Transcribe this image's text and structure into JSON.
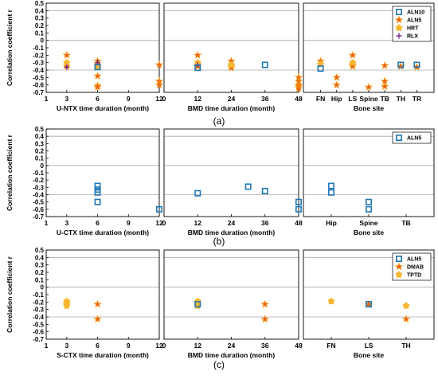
{
  "colors": {
    "ALN10": "#1f77b4",
    "ALN5": "#1f77b4",
    "HRT": "#f7b731",
    "RLX": "#7b2c8c",
    "DMAB": "#e8641e",
    "TPTD": "#f7b731",
    "star_fill": "#e8641e",
    "star_edge": "#ff9900",
    "refline": "#aaaaaa",
    "box": "#000000"
  },
  "chart_data": [
    {
      "type": "scatter",
      "panel": "a",
      "caption": "(a)",
      "ylabel": "Correlation coefficient r",
      "yticks": [
        "0.5",
        "0.4",
        "0.3",
        "0.2",
        "0.1",
        "0",
        "-0.1",
        "-0.2",
        "-0.3",
        "-0.4",
        "-0.5",
        "-0.6",
        "-0.7"
      ],
      "ylim": [
        -0.7,
        0.5
      ],
      "reflines": [
        0.4,
        0,
        -0.4
      ],
      "legend": {
        "position": "top-right",
        "entries": [
          {
            "name": "ALN10",
            "marker": "square",
            "color": "ALN10"
          },
          {
            "name": "ALN5",
            "marker": "star",
            "color": "ALN5"
          },
          {
            "name": "HRT",
            "marker": "circle",
            "color": "HRT"
          },
          {
            "name": "RLX",
            "marker": "plus",
            "color": "RLX"
          }
        ]
      },
      "subplots": [
        {
          "xlabel": "U-NTX time duration (month)",
          "xtype": "numeric",
          "xlim": [
            1,
            12
          ],
          "xticks": [
            "1",
            "3",
            "6",
            "9",
            "12"
          ],
          "series": [
            {
              "name": "ALN10",
              "marker": "square",
              "points": [
                [
                  6,
                  -0.36
                ]
              ]
            },
            {
              "name": "ALN5",
              "marker": "star",
              "points": [
                [
                  3,
                  -0.2
                ],
                [
                  3,
                  -0.35
                ],
                [
                  6,
                  -0.28
                ],
                [
                  6,
                  -0.33
                ],
                [
                  6,
                  -0.48
                ],
                [
                  6,
                  -0.61
                ],
                [
                  6,
                  -0.63
                ],
                [
                  12,
                  -0.33
                ],
                [
                  12,
                  -0.55
                ],
                [
                  12,
                  -0.6
                ]
              ]
            },
            {
              "name": "HRT",
              "marker": "circle",
              "points": [
                [
                  3,
                  -0.3
                ],
                [
                  6,
                  -0.35
                ]
              ]
            },
            {
              "name": "RLX",
              "marker": "plus",
              "points": [
                [
                  3,
                  -0.36
                ],
                [
                  6,
                  -0.3
                ]
              ]
            }
          ]
        },
        {
          "xlabel": "BMD time duration (month)",
          "xtype": "numeric",
          "xlim": [
            0,
            48
          ],
          "xticks": [
            "0",
            "12",
            "24",
            "36",
            "48"
          ],
          "series": [
            {
              "name": "ALN10",
              "marker": "square",
              "points": [
                [
                  12,
                  -0.37
                ],
                [
                  36,
                  -0.33
                ]
              ]
            },
            {
              "name": "ALN5",
              "marker": "star",
              "points": [
                [
                  12,
                  -0.2
                ],
                [
                  12,
                  -0.33
                ],
                [
                  12,
                  -0.35
                ],
                [
                  24,
                  -0.28
                ],
                [
                  24,
                  -0.35
                ],
                [
                  24,
                  -0.37
                ],
                [
                  48,
                  -0.5
                ],
                [
                  48,
                  -0.55
                ],
                [
                  48,
                  -0.6
                ],
                [
                  48,
                  -0.62
                ],
                [
                  48,
                  -0.65
                ]
              ]
            },
            {
              "name": "HRT",
              "marker": "circle",
              "points": [
                [
                  12,
                  -0.3
                ],
                [
                  24,
                  -0.33
                ]
              ]
            },
            {
              "name": "RLX",
              "marker": "plus",
              "points": [
                [
                  12,
                  -0.33
                ]
              ]
            }
          ]
        },
        {
          "xlabel": "Bone site",
          "xtype": "category",
          "categories": [
            "FN",
            "Hip",
            "LS",
            "Spine",
            "TB",
            "TH",
            "TR"
          ],
          "series": [
            {
              "name": "ALN10",
              "marker": "square",
              "points": [
                [
                  "FN",
                  -0.38
                ],
                [
                  "TH",
                  -0.33
                ],
                [
                  "TR",
                  -0.33
                ]
              ]
            },
            {
              "name": "ALN5",
              "marker": "star",
              "points": [
                [
                  "FN",
                  -0.28
                ],
                [
                  "Hip",
                  -0.5
                ],
                [
                  "Hip",
                  -0.6
                ],
                [
                  "LS",
                  -0.2
                ],
                [
                  "LS",
                  -0.33
                ],
                [
                  "LS",
                  -0.35
                ],
                [
                  "Spine",
                  -0.63
                ],
                [
                  "TB",
                  -0.34
                ],
                [
                  "TB",
                  -0.55
                ],
                [
                  "TB",
                  -0.62
                ],
                [
                  "TH",
                  -0.35
                ],
                [
                  "TR",
                  -0.36
                ]
              ]
            },
            {
              "name": "HRT",
              "marker": "circle",
              "points": [
                [
                  "FN",
                  -0.32
                ],
                [
                  "LS",
                  -0.3
                ]
              ]
            }
          ]
        }
      ]
    },
    {
      "type": "scatter",
      "panel": "b",
      "caption": "(b)",
      "ylabel": "Correlation coefficient r",
      "yticks": [
        "0.5",
        "0.4",
        "0.3",
        "0.2",
        "0.1",
        "0",
        "-0.1",
        "-0.2",
        "-0.3",
        "-0.4",
        "-0.5",
        "-0.6",
        "-0.7"
      ],
      "ylim": [
        -0.7,
        0.5
      ],
      "reflines": [
        0.4,
        0,
        -0.4
      ],
      "legend": {
        "position": "top-right",
        "entries": [
          {
            "name": "ALN5",
            "marker": "square",
            "color": "ALN5"
          }
        ]
      },
      "subplots": [
        {
          "xlabel": "U-CTX time duration (month)",
          "xtype": "numeric",
          "xlim": [
            1,
            12
          ],
          "xticks": [
            "1",
            "3",
            "6",
            "9",
            "12"
          ],
          "series": [
            {
              "name": "ALN5",
              "marker": "square",
              "points": [
                [
                  6,
                  -0.28
                ],
                [
                  6,
                  -0.33
                ],
                [
                  6,
                  -0.37
                ],
                [
                  6,
                  -0.5
                ],
                [
                  12,
                  -0.6
                ]
              ]
            }
          ]
        },
        {
          "xlabel": "BMD time duration (month)",
          "xtype": "numeric",
          "xlim": [
            0,
            48
          ],
          "xticks": [
            "0",
            "12",
            "24",
            "36",
            "48"
          ],
          "series": [
            {
              "name": "ALN5",
              "marker": "square",
              "points": [
                [
                  12,
                  -0.38
                ],
                [
                  30,
                  -0.29
                ],
                [
                  36,
                  -0.35
                ],
                [
                  48,
                  -0.5
                ],
                [
                  48,
                  -0.6
                ]
              ]
            }
          ]
        },
        {
          "xlabel": "Bone site",
          "xtype": "category",
          "categories": [
            "Hip",
            "Spine",
            "TB"
          ],
          "series": [
            {
              "name": "ALN5",
              "marker": "square",
              "points": [
                [
                  "Hip",
                  -0.28
                ],
                [
                  "Hip",
                  -0.37
                ],
                [
                  "Spine",
                  -0.5
                ],
                [
                  "Spine",
                  -0.6
                ]
              ]
            }
          ]
        }
      ]
    },
    {
      "type": "scatter",
      "panel": "c",
      "caption": "(c)",
      "ylabel": "Correlation coefficient r",
      "yticks": [
        "0.5",
        "0.4",
        "0.3",
        "0.2",
        "0.1",
        "0",
        "-0.1",
        "-0.2",
        "-0.3",
        "-0.4",
        "-0.5",
        "-0.6",
        "-0.7"
      ],
      "ylim": [
        -0.7,
        0.5
      ],
      "reflines": [
        0.4,
        0,
        -0.4
      ],
      "legend": {
        "position": "top-right",
        "entries": [
          {
            "name": "ALN5",
            "marker": "square",
            "color": "ALN5"
          },
          {
            "name": "DMAB",
            "marker": "star",
            "color": "DMAB"
          },
          {
            "name": "TPTD",
            "marker": "circle",
            "color": "TPTD"
          }
        ]
      },
      "subplots": [
        {
          "xlabel": "S-CTX time duration (month)",
          "xtype": "numeric",
          "xlim": [
            1,
            12
          ],
          "xticks": [
            "1",
            "3",
            "6",
            "9",
            "12"
          ],
          "series": [
            {
              "name": "DMAB",
              "marker": "star",
              "points": [
                [
                  6,
                  -0.23
                ],
                [
                  6,
                  -0.43
                ]
              ]
            },
            {
              "name": "TPTD",
              "marker": "circle",
              "points": [
                [
                  3,
                  -0.19
                ],
                [
                  3,
                  -0.21
                ],
                [
                  3,
                  -0.23
                ],
                [
                  3,
                  -0.25
                ]
              ]
            }
          ]
        },
        {
          "xlabel": "BMD time duration (month)",
          "xtype": "numeric",
          "xlim": [
            0,
            48
          ],
          "xticks": [
            "0",
            "12",
            "24",
            "36",
            "48"
          ],
          "series": [
            {
              "name": "ALN5",
              "marker": "square",
              "points": [
                [
                  12,
                  -0.23
                ]
              ]
            },
            {
              "name": "DMAB",
              "marker": "star",
              "points": [
                [
                  36,
                  -0.23
                ],
                [
                  36,
                  -0.43
                ]
              ]
            },
            {
              "name": "TPTD",
              "marker": "circle",
              "points": [
                [
                  12,
                  -0.19
                ],
                [
                  12,
                  -0.21
                ],
                [
                  12,
                  -0.25
                ]
              ]
            }
          ]
        },
        {
          "xlabel": "Bone site",
          "xtype": "category",
          "categories": [
            "FN",
            "LS",
            "TH"
          ],
          "series": [
            {
              "name": "ALN5",
              "marker": "square",
              "points": [
                [
                  "LS",
                  -0.23
                ]
              ]
            },
            {
              "name": "DMAB",
              "marker": "star",
              "points": [
                [
                  "LS",
                  -0.23
                ],
                [
                  "TH",
                  -0.43
                ]
              ]
            },
            {
              "name": "TPTD",
              "marker": "circle",
              "points": [
                [
                  "FN",
                  -0.19
                ],
                [
                  "TH",
                  -0.25
                ]
              ]
            }
          ]
        }
      ]
    }
  ]
}
